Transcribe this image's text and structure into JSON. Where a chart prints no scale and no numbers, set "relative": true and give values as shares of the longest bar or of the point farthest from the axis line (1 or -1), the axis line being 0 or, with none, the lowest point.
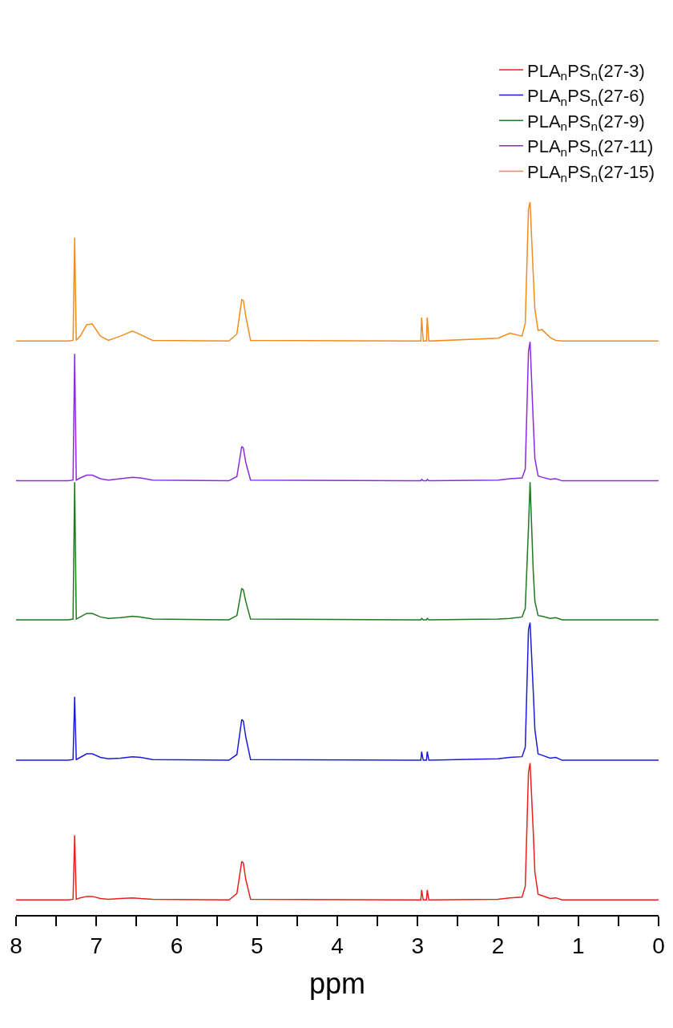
{
  "chart_data": {
    "type": "line",
    "xlabel": "ppm",
    "relative": true,
    "legend": "top right",
    "xlim": [
      8,
      0
    ],
    "xticks": [
      8,
      {
        "value": 7.5,
        "label": null
      },
      7,
      {
        "value": 6.5,
        "label": null
      },
      6,
      {
        "value": 5.5,
        "label": null
      },
      5,
      {
        "value": 4.5,
        "label": null
      },
      4,
      {
        "value": 3.5,
        "label": null
      },
      3,
      {
        "value": 2.5,
        "label": null
      },
      2,
      {
        "value": 1.5,
        "label": null
      },
      1,
      {
        "value": 0.5,
        "label": null
      },
      0
    ],
    "x": [
      8,
      7.35,
      7.29,
      7.27,
      7.25,
      7.2,
      7.12,
      7.05,
      6.95,
      6.85,
      6.7,
      6.55,
      6.45,
      6.3,
      5.35,
      5.25,
      5.19,
      5.17,
      5.14,
      5.08,
      3.05,
      2.96,
      2.95,
      2.93,
      2.89,
      2.88,
      2.86,
      2.0,
      1.85,
      1.7,
      1.66,
      1.62,
      1.6,
      1.56,
      1.54,
      1.5,
      1.45,
      1.35,
      1.28,
      1.2,
      0
    ],
    "series": [
      {
        "name": "PLA$_{n}$PS$_{n}$(27-3)",
        "color": "#e8211d",
        "values": [
          0.021,
          0.021,
          0.022,
          0.112,
          0.022,
          0.024,
          0.026,
          0.026,
          0.023,
          0.022,
          0.023,
          0.024,
          0.023,
          0.022,
          0.021,
          0.03,
          0.075,
          0.073,
          0.05,
          0.022,
          0.021,
          0.021,
          0.035,
          0.021,
          0.021,
          0.035,
          0.021,
          0.022,
          0.024,
          0.025,
          0.04,
          0.2,
          0.213,
          0.116,
          0.06,
          0.029,
          0.027,
          0.023,
          0.024,
          0.021,
          0.021
        ]
      },
      {
        "name": "PLA$_{n}$PS$_{n}$(27-6)",
        "color": "#1b1bdc",
        "values": [
          0.217,
          0.217,
          0.218,
          0.306,
          0.218,
          0.221,
          0.226,
          0.226,
          0.221,
          0.219,
          0.22,
          0.222,
          0.221,
          0.218,
          0.217,
          0.225,
          0.274,
          0.272,
          0.25,
          0.218,
          0.217,
          0.217,
          0.229,
          0.217,
          0.217,
          0.229,
          0.217,
          0.219,
          0.221,
          0.222,
          0.235,
          0.4,
          0.41,
          0.313,
          0.26,
          0.226,
          0.224,
          0.22,
          0.221,
          0.217,
          0.217
        ]
      },
      {
        "name": "PLA$_{n}$PS$_{n}$(27-9)",
        "color": "#1f7a1f",
        "values": [
          0.414,
          0.414,
          0.415,
          0.607,
          0.415,
          0.418,
          0.423,
          0.423,
          0.418,
          0.416,
          0.417,
          0.419,
          0.418,
          0.415,
          0.414,
          0.42,
          0.458,
          0.456,
          0.44,
          0.415,
          0.414,
          0.414,
          0.416,
          0.414,
          0.414,
          0.416,
          0.414,
          0.415,
          0.416,
          0.418,
          0.43,
          0.543,
          0.607,
          0.481,
          0.44,
          0.42,
          0.419,
          0.416,
          0.417,
          0.414,
          0.414
        ]
      },
      {
        "name": "PLA$_{n}$PS$_{n}$(27-11)",
        "color": "#8a2be2",
        "values": [
          0.609,
          0.609,
          0.61,
          0.787,
          0.61,
          0.613,
          0.617,
          0.617,
          0.612,
          0.61,
          0.612,
          0.614,
          0.613,
          0.61,
          0.609,
          0.615,
          0.657,
          0.655,
          0.635,
          0.61,
          0.609,
          0.609,
          0.611,
          0.609,
          0.609,
          0.611,
          0.609,
          0.61,
          0.612,
          0.613,
          0.625,
          0.79,
          0.804,
          0.691,
          0.64,
          0.616,
          0.614,
          0.611,
          0.612,
          0.609,
          0.609
        ]
      },
      {
        "name": "PLA$_{n}$PS$_{n}$(27-15)",
        "color": "#f28c1c",
        "values": [
          0.805,
          0.805,
          0.806,
          0.95,
          0.806,
          0.812,
          0.828,
          0.829,
          0.812,
          0.806,
          0.812,
          0.819,
          0.814,
          0.806,
          0.805,
          0.815,
          0.863,
          0.862,
          0.84,
          0.806,
          0.805,
          0.805,
          0.838,
          0.805,
          0.805,
          0.838,
          0.805,
          0.809,
          0.816,
          0.812,
          0.83,
          0.99,
          1.0,
          0.897,
          0.85,
          0.82,
          0.821,
          0.81,
          0.806,
          0.805,
          0.805
        ]
      }
    ]
  }
}
